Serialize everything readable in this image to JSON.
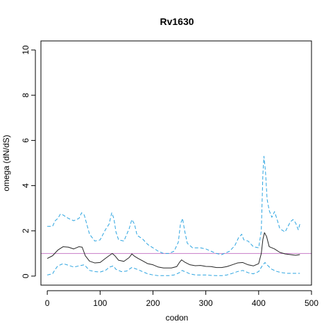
{
  "chart_data": {
    "type": "line",
    "title": "Rv1630",
    "xlabel": "codon",
    "ylabel": "omega (dN/dS)",
    "xlim": [
      -12,
      500
    ],
    "ylim": [
      -0.4,
      10.4
    ],
    "x_ticks": [
      0,
      100,
      200,
      300,
      400,
      500
    ],
    "y_ticks": [
      0,
      2,
      4,
      6,
      8,
      10
    ],
    "reference_line": {
      "y": 1,
      "color": "#c77bc7"
    },
    "series": [
      {
        "style": "solid",
        "color": "#222222",
        "x": [
          0,
          10,
          20,
          30,
          40,
          50,
          60,
          66,
          72,
          80,
          90,
          100,
          110,
          118,
          123,
          128,
          135,
          145,
          155,
          160,
          165,
          172,
          180,
          190,
          200,
          210,
          220,
          235,
          245,
          250,
          254,
          260,
          270,
          280,
          290,
          300,
          310,
          320,
          330,
          340,
          350,
          360,
          370,
          380,
          390,
          400,
          405,
          408,
          411,
          415,
          420,
          430,
          440,
          450,
          460,
          470,
          478
        ],
        "y": [
          0.78,
          0.9,
          1.15,
          1.3,
          1.28,
          1.2,
          1.3,
          1.28,
          0.9,
          0.66,
          0.58,
          0.6,
          0.78,
          0.92,
          1.0,
          0.9,
          0.7,
          0.65,
          0.82,
          0.98,
          0.88,
          0.78,
          0.68,
          0.55,
          0.5,
          0.4,
          0.36,
          0.36,
          0.42,
          0.6,
          0.72,
          0.62,
          0.5,
          0.46,
          0.47,
          0.43,
          0.42,
          0.38,
          0.38,
          0.42,
          0.5,
          0.58,
          0.6,
          0.5,
          0.45,
          0.55,
          1.0,
          1.62,
          1.92,
          1.75,
          1.3,
          1.2,
          1.05,
          0.98,
          0.95,
          0.92,
          0.95
        ]
      },
      {
        "style": "dashed",
        "color": "#29a3e0",
        "x": [
          0,
          5,
          10,
          15,
          20,
          25,
          30,
          40,
          50,
          60,
          65,
          70,
          80,
          90,
          100,
          110,
          117,
          122,
          126,
          130,
          135,
          145,
          155,
          160,
          165,
          170,
          180,
          190,
          200,
          210,
          220,
          230,
          240,
          248,
          252,
          256,
          260,
          265,
          275,
          290,
          300,
          310,
          320,
          330,
          345,
          355,
          362,
          368,
          372,
          380,
          390,
          400,
          405,
          408,
          410,
          413,
          416,
          420,
          425,
          430,
          435,
          440,
          450,
          460,
          465,
          470,
          475,
          478
        ],
        "y": [
          2.2,
          2.2,
          2.2,
          2.45,
          2.55,
          2.75,
          2.7,
          2.55,
          2.45,
          2.55,
          2.8,
          2.7,
          1.85,
          1.55,
          1.6,
          2.05,
          2.3,
          2.8,
          2.55,
          1.95,
          1.6,
          1.55,
          2.1,
          2.5,
          2.3,
          1.8,
          1.65,
          1.4,
          1.25,
          1.1,
          1.0,
          1.0,
          1.1,
          1.5,
          2.3,
          2.55,
          2.0,
          1.45,
          1.25,
          1.25,
          1.2,
          1.1,
          1.0,
          0.95,
          1.1,
          1.35,
          1.7,
          1.85,
          1.6,
          1.55,
          1.3,
          1.25,
          2.0,
          4.5,
          5.3,
          4.6,
          3.4,
          2.9,
          2.6,
          2.85,
          2.5,
          2.1,
          1.95,
          2.4,
          2.5,
          2.35,
          2.05,
          2.3
        ]
      },
      {
        "style": "dashed",
        "color": "#29a3e0",
        "x": [
          0,
          10,
          15,
          20,
          30,
          40,
          50,
          60,
          70,
          80,
          90,
          100,
          110,
          118,
          125,
          130,
          140,
          150,
          160,
          170,
          180,
          190,
          200,
          210,
          220,
          230,
          240,
          250,
          255,
          260,
          270,
          280,
          290,
          300,
          310,
          320,
          330,
          340,
          350,
          360,
          370,
          380,
          390,
          400,
          408,
          412,
          418,
          425,
          435,
          445,
          455,
          465,
          478
        ],
        "y": [
          0.05,
          0.1,
          0.3,
          0.45,
          0.55,
          0.48,
          0.4,
          0.45,
          0.5,
          0.25,
          0.2,
          0.18,
          0.25,
          0.4,
          0.45,
          0.3,
          0.2,
          0.22,
          0.38,
          0.3,
          0.2,
          0.1,
          0.05,
          0.02,
          0.02,
          0.02,
          0.05,
          0.15,
          0.25,
          0.2,
          0.1,
          0.05,
          0.05,
          0.05,
          0.03,
          0.02,
          0.02,
          0.05,
          0.12,
          0.2,
          0.25,
          0.15,
          0.1,
          0.2,
          0.5,
          0.6,
          0.45,
          0.3,
          0.2,
          0.15,
          0.12,
          0.12,
          0.12
        ]
      }
    ],
    "grid": false,
    "legend": "none"
  }
}
